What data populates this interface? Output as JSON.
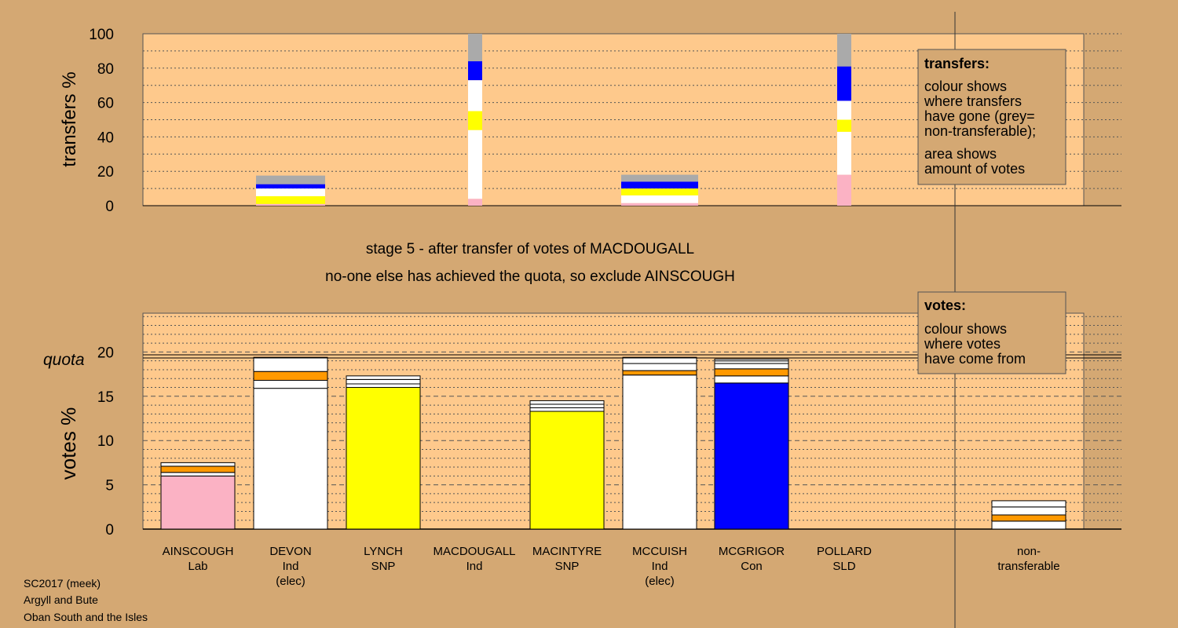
{
  "colors": {
    "background": "#d4a873",
    "plot": "#fec98c",
    "Lab": "#fbb2c4",
    "Ind": "#ffffff",
    "SNP": "#ffff00",
    "Con": "#0000ff",
    "SLD": "#ff9900",
    "non": "#aaaaaa"
  },
  "top_chart": {
    "ylabel": "transfers %",
    "ticks": [
      "0",
      "20",
      "40",
      "60",
      "80",
      "100"
    ],
    "legend": {
      "title": "transfers:",
      "lines1": [
        "colour shows",
        "where transfers",
        "have gone (grey=",
        "non-transferable);"
      ],
      "lines2": [
        "area shows",
        "amount of votes"
      ]
    }
  },
  "middle": {
    "line1": "stage 5 - after transfer of votes of MACDOUGALL",
    "line2": "no-one else has achieved the quota, so exclude AINSCOUGH"
  },
  "bottom_chart": {
    "ylabel": "votes %",
    "quota_label": "quota",
    "ticks": [
      "0",
      "5",
      "10",
      "15",
      "20"
    ],
    "legend": {
      "title": "votes:",
      "lines": [
        "colour shows",
        "where votes",
        "have come from"
      ]
    }
  },
  "chart_data": [
    {
      "type": "bar",
      "stacked": true,
      "title": "",
      "xlabel": "",
      "ylabel": "transfers %",
      "ylim": [
        0,
        100
      ],
      "categories": [
        "DEVON",
        "MACDOUGALL",
        "MCCUISH",
        "non-transferable"
      ],
      "bars": [
        {
          "candidate": "DEVON",
          "segments": [
            {
              "party": "Lab",
              "value": 1
            },
            {
              "party": "SNP",
              "value": 4.5
            },
            {
              "party": "Ind",
              "value": 4.5
            },
            {
              "party": "Con",
              "value": 2.5
            },
            {
              "party": "non",
              "value": 5
            }
          ]
        },
        {
          "candidate": "MACDOUGALL",
          "segments": [
            {
              "party": "Lab",
              "value": 4
            },
            {
              "party": "Ind",
              "value": 40
            },
            {
              "party": "SNP",
              "value": 11
            },
            {
              "party": "Ind",
              "value": 18
            },
            {
              "party": "Con",
              "value": 11
            },
            {
              "party": "non",
              "value": 16
            }
          ]
        },
        {
          "candidate": "MCCUISH",
          "segments": [
            {
              "party": "Lab",
              "value": 1.5
            },
            {
              "party": "Ind",
              "value": 4.5
            },
            {
              "party": "SNP",
              "value": 4
            },
            {
              "party": "Con",
              "value": 4
            },
            {
              "party": "non",
              "value": 4
            }
          ]
        },
        {
          "candidate": "non-transferable",
          "segments": [
            {
              "party": "Lab",
              "value": 18
            },
            {
              "party": "Ind",
              "value": 25
            },
            {
              "party": "SNP",
              "value": 7
            },
            {
              "party": "Ind",
              "value": 11
            },
            {
              "party": "Con",
              "value": 20
            },
            {
              "party": "non",
              "value": 19
            }
          ]
        }
      ]
    },
    {
      "type": "bar",
      "stacked": true,
      "title": "",
      "xlabel": "",
      "ylabel": "votes %",
      "ylim": [
        0,
        25
      ],
      "quota": 19.4,
      "categories": [
        {
          "name": "AINSCOUGH",
          "party": "Lab",
          "note": ""
        },
        {
          "name": "DEVON",
          "party": "Ind",
          "note": "(elec)"
        },
        {
          "name": "LYNCH",
          "party": "SNP",
          "note": ""
        },
        {
          "name": "MACDOUGALL",
          "party": "Ind",
          "note": ""
        },
        {
          "name": "MACINTYRE",
          "party": "SNP",
          "note": ""
        },
        {
          "name": "MCCUISH",
          "party": "Ind",
          "note": "(elec)"
        },
        {
          "name": "MCGRIGOR",
          "party": "Con",
          "note": ""
        },
        {
          "name": "POLLARD",
          "party": "SLD",
          "note": ""
        },
        {
          "name": "non-",
          "party": "transferable",
          "note": ""
        }
      ],
      "bars": [
        {
          "candidate": "AINSCOUGH",
          "segments": [
            {
              "party": "Lab",
              "value": 6.0
            },
            {
              "party": "Ind",
              "value": 0.4
            },
            {
              "party": "SLD",
              "value": 0.7
            },
            {
              "party": "Ind",
              "value": 0.4
            }
          ]
        },
        {
          "candidate": "DEVON",
          "segments": [
            {
              "party": "Ind",
              "value": 15.9
            },
            {
              "party": "Ind",
              "value": 0.9
            },
            {
              "party": "SLD",
              "value": 1.0
            },
            {
              "party": "Ind",
              "value": 1.6
            }
          ]
        },
        {
          "candidate": "LYNCH",
          "segments": [
            {
              "party": "SNP",
              "value": 16.0
            },
            {
              "party": "Ind",
              "value": 0.4
            },
            {
              "party": "Ind",
              "value": 0.5
            },
            {
              "party": "Ind",
              "value": 0.4
            }
          ]
        },
        {
          "candidate": "MACDOUGALL",
          "segments": []
        },
        {
          "candidate": "MACINTYRE",
          "segments": [
            {
              "party": "SNP",
              "value": 13.3
            },
            {
              "party": "Ind",
              "value": 0.4
            },
            {
              "party": "Ind",
              "value": 0.4
            },
            {
              "party": "Ind",
              "value": 0.4
            }
          ]
        },
        {
          "candidate": "MCCUISH",
          "segments": [
            {
              "party": "Ind",
              "value": 17.4
            },
            {
              "party": "SLD",
              "value": 0.5
            },
            {
              "party": "Ind",
              "value": 0.8
            },
            {
              "party": "Ind",
              "value": 0.7
            }
          ]
        },
        {
          "candidate": "MCGRIGOR",
          "segments": [
            {
              "party": "Con",
              "value": 16.5
            },
            {
              "party": "Ind",
              "value": 0.8
            },
            {
              "party": "SLD",
              "value": 0.8
            },
            {
              "party": "Ind",
              "value": 0.6
            },
            {
              "party": "Ind",
              "value": 0.3
            },
            {
              "party": "Ind",
              "value": 0.2
            }
          ]
        },
        {
          "candidate": "POLLARD",
          "segments": []
        },
        {
          "candidate": "non-transferable",
          "segments": [
            {
              "party": "Ind",
              "value": 0.9
            },
            {
              "party": "SLD",
              "value": 0.7
            },
            {
              "party": "Ind",
              "value": 0.9
            },
            {
              "party": "Ind",
              "value": 0.7
            }
          ]
        }
      ]
    }
  ],
  "footer": [
    "SC2017 (meek)",
    "Argyll and Bute",
    "Oban South and the Isles"
  ]
}
